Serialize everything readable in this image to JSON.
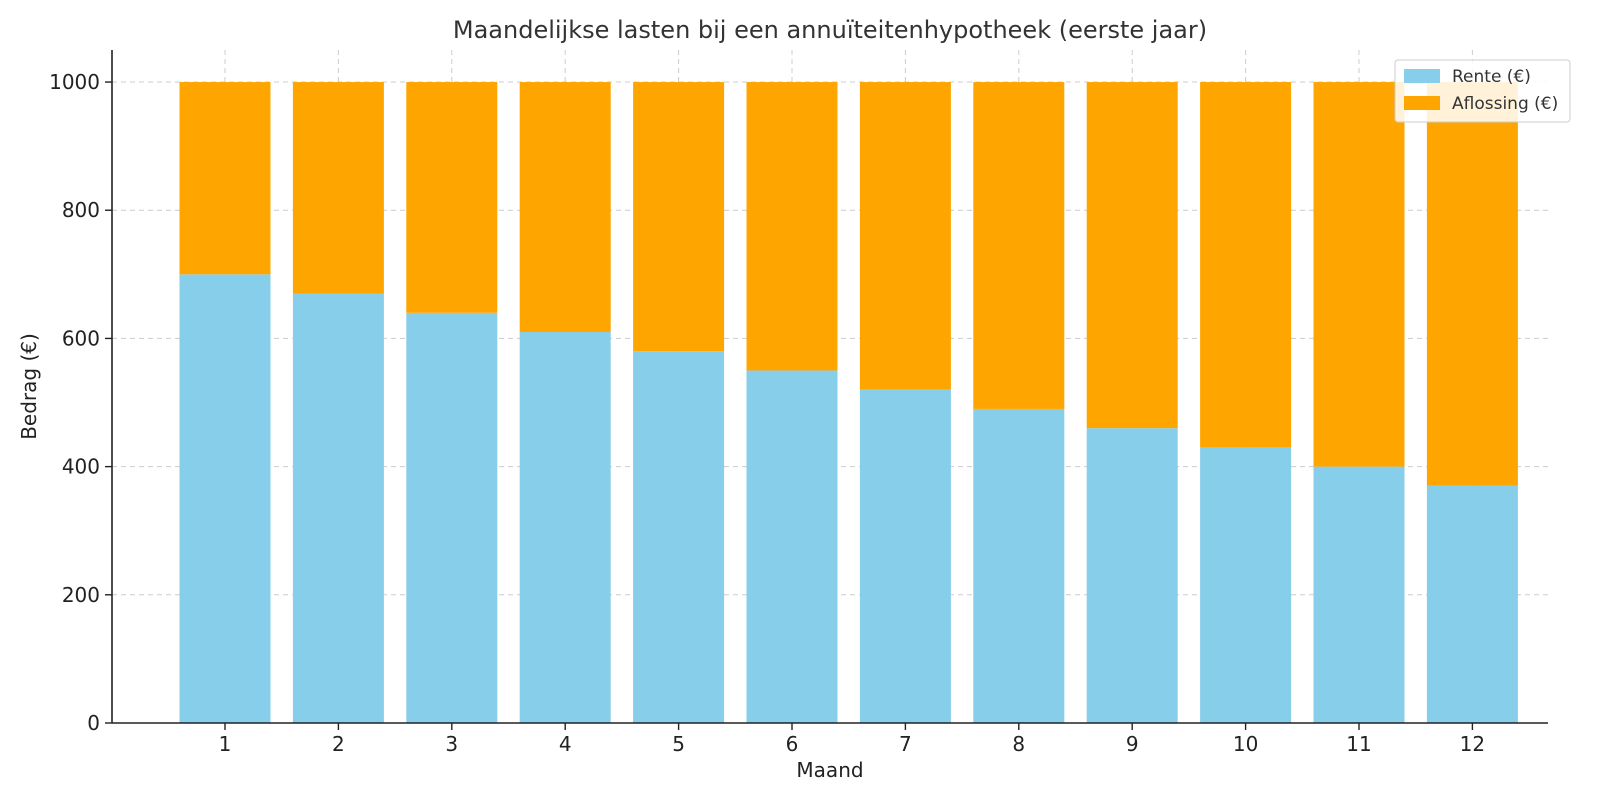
{
  "chart_data": {
    "type": "bar",
    "stacked": true,
    "title": "Maandelijkse lasten bij een annuïteitenhypotheek (eerste jaar)",
    "xlabel": "Maand",
    "ylabel": "Bedrag (€)",
    "categories": [
      "1",
      "2",
      "3",
      "4",
      "5",
      "6",
      "7",
      "8",
      "9",
      "10",
      "11",
      "12"
    ],
    "series": [
      {
        "name": "Rente (€)",
        "color": "#87CEEB",
        "values": [
          700,
          670,
          640,
          610,
          580,
          550,
          520,
          490,
          460,
          430,
          400,
          370
        ]
      },
      {
        "name": "Aflossing (€)",
        "color": "#FFA500",
        "values": [
          300,
          330,
          360,
          390,
          420,
          450,
          480,
          510,
          540,
          570,
          600,
          630
        ]
      }
    ],
    "ylim": [
      0,
      1050
    ],
    "yticks": [
      0,
      200,
      400,
      600,
      800,
      1000
    ],
    "grid": true,
    "legend_position": "top-right"
  }
}
